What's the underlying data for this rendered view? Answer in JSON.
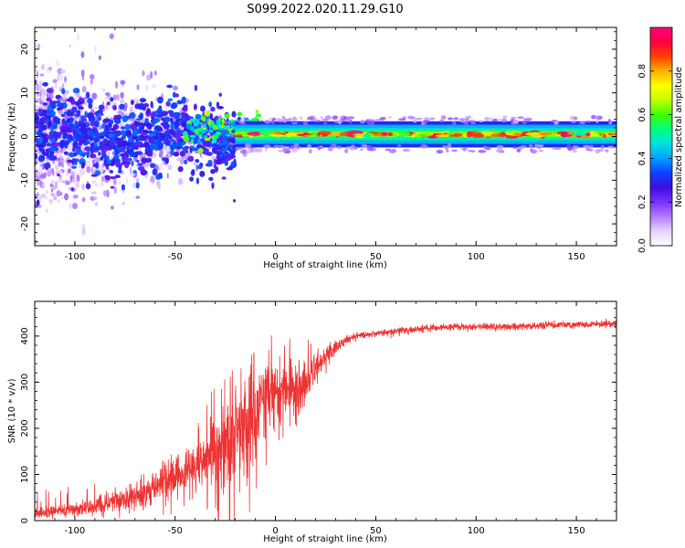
{
  "figure": {
    "title": "S099.2022.020.11.29.G10"
  },
  "colors": {
    "snr_line": "#ee3333",
    "colormap": [
      "#ffffff",
      "#e6d2ff",
      "#b27aff",
      "#7a30ff",
      "#3a10e0",
      "#1040ff",
      "#00a0ff",
      "#00e0e0",
      "#00ff80",
      "#40ff00",
      "#c0ff00",
      "#ffff00",
      "#ffb000",
      "#ff4000",
      "#ff0040",
      "#ff0080"
    ]
  },
  "chart_data": [
    {
      "type": "heatmap",
      "title": "",
      "xlabel": "Height of straight line (km)",
      "ylabel": "Frequency (Hz)",
      "xlim": [
        -120,
        170
      ],
      "ylim": [
        -25,
        25
      ],
      "xticks": [
        -100,
        -50,
        0,
        50,
        100,
        150
      ],
      "yticks": [
        -20,
        -10,
        0,
        10,
        20
      ],
      "colorbar": {
        "label": "Normalized spectral amplitude",
        "range": [
          0,
          1
        ],
        "ticks": [
          "0.0",
          "0.2",
          "0.4",
          "0.6",
          "0.8"
        ],
        "tick_values": [
          0.0,
          0.2,
          0.4,
          0.6,
          0.8
        ]
      },
      "description_of_pattern": {
        "scatter_region_km": [
          -120,
          -20
        ],
        "coherent_line_region_km": [
          -20,
          170
        ],
        "coherent_line_freq_hz": 0.5,
        "line_amplitude_range": [
          0.5,
          1.0
        ]
      }
    },
    {
      "type": "line",
      "title": "",
      "xlabel": "Height of straight line (km)",
      "ylabel": "SNR (10 * v/v)",
      "xlim": [
        -120,
        170
      ],
      "ylim": [
        0,
        475
      ],
      "xticks": [
        -100,
        -50,
        0,
        50,
        100,
        150
      ],
      "yticks": [
        0,
        100,
        200,
        300,
        400
      ],
      "series": [
        {
          "name": "",
          "x": [
            -120,
            -110,
            -100,
            -90,
            -80,
            -70,
            -60,
            -50,
            -40,
            -30,
            -25,
            -20,
            -15,
            -10,
            -5,
            0,
            5,
            10,
            15,
            20,
            25,
            30,
            35,
            40,
            50,
            60,
            70,
            80,
            90,
            100,
            110,
            120,
            130,
            140,
            150,
            160,
            170
          ],
          "y": [
            15,
            20,
            25,
            30,
            40,
            55,
            75,
            95,
            120,
            150,
            175,
            190,
            210,
            240,
            265,
            280,
            285,
            290,
            305,
            330,
            355,
            375,
            390,
            400,
            405,
            410,
            415,
            418,
            420,
            420,
            420,
            420,
            422,
            424,
            425,
            426,
            428
          ],
          "noise_amplitude": [
            10,
            12,
            15,
            18,
            25,
            30,
            40,
            50,
            60,
            90,
            110,
            120,
            120,
            90,
            70,
            50,
            50,
            60,
            60,
            40,
            25,
            15,
            10,
            8,
            8,
            8,
            8,
            8,
            8,
            8,
            8,
            8,
            8,
            8,
            8,
            8,
            8
          ]
        }
      ]
    }
  ]
}
